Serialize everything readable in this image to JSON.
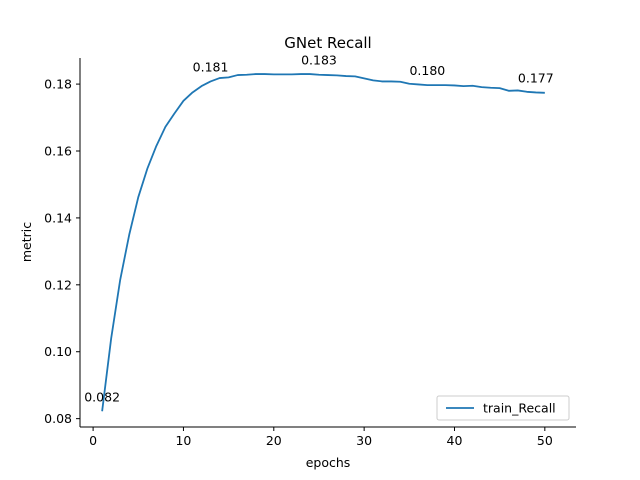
{
  "chart_data": {
    "type": "line",
    "title": "GNet Recall",
    "xlabel": "epochs",
    "ylabel": "metric",
    "xlim": [
      -1.45,
      53.45
    ],
    "ylim": [
      0.0775,
      0.1878
    ],
    "x_ticks": [
      0,
      10,
      20,
      30,
      40,
      50
    ],
    "y_ticks": [
      0.08,
      0.1,
      0.12,
      0.14,
      0.16,
      0.18
    ],
    "y_tick_labels": [
      "0.08",
      "0.10",
      "0.12",
      "0.14",
      "0.16",
      "0.18"
    ],
    "grid": false,
    "legend_position": "lower-right",
    "color": "#1f77b4",
    "series": [
      {
        "name": "train_Recall",
        "x": [
          1,
          2,
          3,
          4,
          5,
          6,
          7,
          8,
          9,
          10,
          11,
          12,
          13,
          14,
          15,
          16,
          17,
          18,
          19,
          20,
          21,
          22,
          23,
          24,
          25,
          26,
          27,
          28,
          29,
          30,
          31,
          32,
          33,
          34,
          35,
          36,
          37,
          38,
          39,
          40,
          41,
          42,
          43,
          44,
          45,
          46,
          47,
          48,
          49,
          50
        ],
        "y": [
          0.0822,
          0.104,
          0.1215,
          0.135,
          0.1462,
          0.1547,
          0.1615,
          0.1672,
          0.1712,
          0.175,
          0.1775,
          0.1794,
          0.1808,
          0.1818,
          0.182,
          0.1827,
          0.1828,
          0.183,
          0.183,
          0.1829,
          0.1829,
          0.1829,
          0.183,
          0.183,
          0.1828,
          0.1827,
          0.1826,
          0.1824,
          0.1823,
          0.1817,
          0.1811,
          0.1808,
          0.1808,
          0.1807,
          0.1801,
          0.1799,
          0.1797,
          0.1797,
          0.1797,
          0.1796,
          0.1794,
          0.1795,
          0.1791,
          0.1789,
          0.1788,
          0.178,
          0.1781,
          0.1777,
          0.1775,
          0.1774
        ]
      }
    ],
    "annotations": [
      {
        "x": 1,
        "y": 0.0822,
        "text": "0.082"
      },
      {
        "x": 13,
        "y": 0.1808,
        "text": "0.181"
      },
      {
        "x": 25,
        "y": 0.1828,
        "text": "0.183"
      },
      {
        "x": 37,
        "y": 0.1797,
        "text": "0.180"
      },
      {
        "x": 49,
        "y": 0.1775,
        "text": "0.177"
      }
    ]
  }
}
